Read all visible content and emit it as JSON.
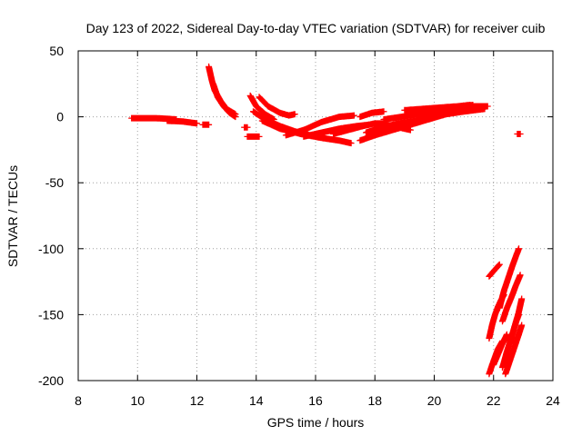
{
  "chart_data": {
    "type": "scatter",
    "title": "Day 123 of 2022, Sidereal Day-to-day VTEC variation (SDTVAR) for receiver cuib",
    "xlabel": "GPS time / hours",
    "ylabel": "SDTVAR / TECUs",
    "xlim": [
      8,
      24
    ],
    "ylim": [
      -200,
      50
    ],
    "xticks": [
      8,
      10,
      12,
      14,
      16,
      18,
      20,
      22,
      24
    ],
    "yticks": [
      -200,
      -150,
      -100,
      -50,
      0,
      50
    ],
    "grid": true,
    "marker": "plus",
    "color": "#ff0000",
    "tracks": [
      {
        "name": "t1",
        "x": [
          9.8,
          10.2,
          10.6,
          11.0,
          11.3
        ],
        "y": [
          -1,
          -1,
          -1,
          -1.5,
          -2
        ]
      },
      {
        "name": "t2",
        "x": [
          11.0,
          11.5,
          12.0
        ],
        "y": [
          -3,
          -3.5,
          -5
        ]
      },
      {
        "name": "t3",
        "x": [
          12.2,
          12.4
        ],
        "y": [
          -6,
          -6
        ]
      },
      {
        "name": "t4",
        "x": [
          12.4,
          12.5,
          12.6,
          12.8,
          13.0,
          13.3
        ],
        "y": [
          38,
          28,
          20,
          12,
          6,
          2
        ]
      },
      {
        "name": "t5",
        "x": [
          12.55,
          12.7,
          12.9,
          13.1,
          13.3
        ],
        "y": [
          25,
          15,
          8,
          3,
          0
        ]
      },
      {
        "name": "t6",
        "x": [
          13.6,
          13.7
        ],
        "y": [
          -8,
          -8
        ]
      },
      {
        "name": "t7",
        "x": [
          13.7,
          14.1
        ],
        "y": [
          -15,
          -15
        ]
      },
      {
        "name": "t8",
        "x": [
          13.8,
          14.0,
          14.3,
          14.6
        ],
        "y": [
          16,
          8,
          2,
          -2
        ]
      },
      {
        "name": "t9",
        "x": [
          14.1,
          14.4,
          14.8,
          15.1,
          15.3
        ],
        "y": [
          15,
          8,
          3,
          1,
          2
        ]
      },
      {
        "name": "t10",
        "x": [
          13.9,
          14.3,
          14.8,
          15.3,
          15.8,
          16.3
        ],
        "y": [
          4,
          -2,
          -7,
          -11,
          -14,
          -15
        ]
      },
      {
        "name": "t11",
        "x": [
          14.2,
          14.8,
          15.5,
          16.2,
          16.8,
          17.2
        ],
        "y": [
          -3,
          -9,
          -13,
          -16,
          -18,
          -20
        ]
      },
      {
        "name": "t12",
        "x": [
          15.0,
          15.6,
          16.2,
          16.8,
          17.3
        ],
        "y": [
          -14,
          -10,
          -4,
          0,
          1
        ]
      },
      {
        "name": "t13",
        "x": [
          15.6,
          16.2,
          16.8,
          17.4,
          17.8
        ],
        "y": [
          -15,
          -12,
          -9,
          -7,
          -6
        ]
      },
      {
        "name": "t14",
        "x": [
          16.6,
          17.1,
          17.6,
          18.0,
          18.4
        ],
        "y": [
          -13,
          -10,
          -7,
          -5,
          -5
        ]
      },
      {
        "name": "t15",
        "x": [
          17.5,
          17.9,
          18.3
        ],
        "y": [
          0,
          3,
          4
        ]
      },
      {
        "name": "t16",
        "x": [
          17.5,
          18.0,
          18.6,
          19.2,
          19.8,
          20.4,
          21.0,
          21.7
        ],
        "y": [
          -18,
          -14,
          -10,
          -6,
          -2,
          2,
          4,
          6
        ]
      },
      {
        "name": "t17",
        "x": [
          17.7,
          18.2,
          18.8,
          19.4,
          20.0,
          20.6
        ],
        "y": [
          -12,
          -8,
          -5,
          -3,
          0,
          3
        ]
      },
      {
        "name": "t18",
        "x": [
          18.3,
          18.9,
          19.5,
          20.1,
          20.7,
          21.3,
          21.8
        ],
        "y": [
          -2,
          0,
          2,
          4,
          6,
          8,
          8
        ]
      },
      {
        "name": "t19",
        "x": [
          18.4,
          18.8,
          19.2
        ],
        "y": [
          -6,
          -8,
          -10
        ]
      },
      {
        "name": "t20",
        "x": [
          19.0,
          19.6,
          20.2,
          20.8,
          21.2
        ],
        "y": [
          5,
          6,
          7,
          8,
          9
        ]
      },
      {
        "name": "t21",
        "x": [
          20.4,
          20.9,
          21.3
        ],
        "y": [
          4,
          8,
          9
        ]
      },
      {
        "name": "t22",
        "x": [
          22.8,
          22.9
        ],
        "y": [
          -13,
          -13
        ]
      },
      {
        "name": "t23",
        "x": [
          21.85,
          22.0,
          22.2
        ],
        "y": [
          -121,
          -117,
          -112
        ]
      },
      {
        "name": "t24",
        "x": [
          21.85,
          21.95,
          22.05,
          22.15,
          22.25,
          22.35
        ],
        "y": [
          -168,
          -158,
          -150,
          -144,
          -139,
          -135
        ]
      },
      {
        "name": "t25",
        "x": [
          21.85,
          22.0,
          22.15,
          22.3
        ],
        "y": [
          -195,
          -185,
          -176,
          -170
        ]
      },
      {
        "name": "t26",
        "x": [
          22.0,
          22.15,
          22.3,
          22.45
        ],
        "y": [
          -188,
          -180,
          -172,
          -165
        ]
      },
      {
        "name": "t27",
        "x": [
          22.2,
          22.35,
          22.5,
          22.65,
          22.85
        ],
        "y": [
          -145,
          -132,
          -122,
          -112,
          -100
        ]
      },
      {
        "name": "t28",
        "x": [
          22.3,
          22.45,
          22.6,
          22.75,
          22.9
        ],
        "y": [
          -155,
          -145,
          -137,
          -128,
          -120
        ]
      },
      {
        "name": "t29",
        "x": [
          22.3,
          22.45,
          22.6,
          22.75,
          22.85
        ],
        "y": [
          -190,
          -178,
          -167,
          -156,
          -150
        ]
      },
      {
        "name": "t30",
        "x": [
          22.4,
          22.55,
          22.7,
          22.85,
          22.95
        ],
        "y": [
          -195,
          -185,
          -175,
          -165,
          -158
        ]
      },
      {
        "name": "t31",
        "x": [
          22.55,
          22.7,
          22.85,
          22.95
        ],
        "y": [
          -172,
          -160,
          -148,
          -138
        ]
      }
    ]
  }
}
